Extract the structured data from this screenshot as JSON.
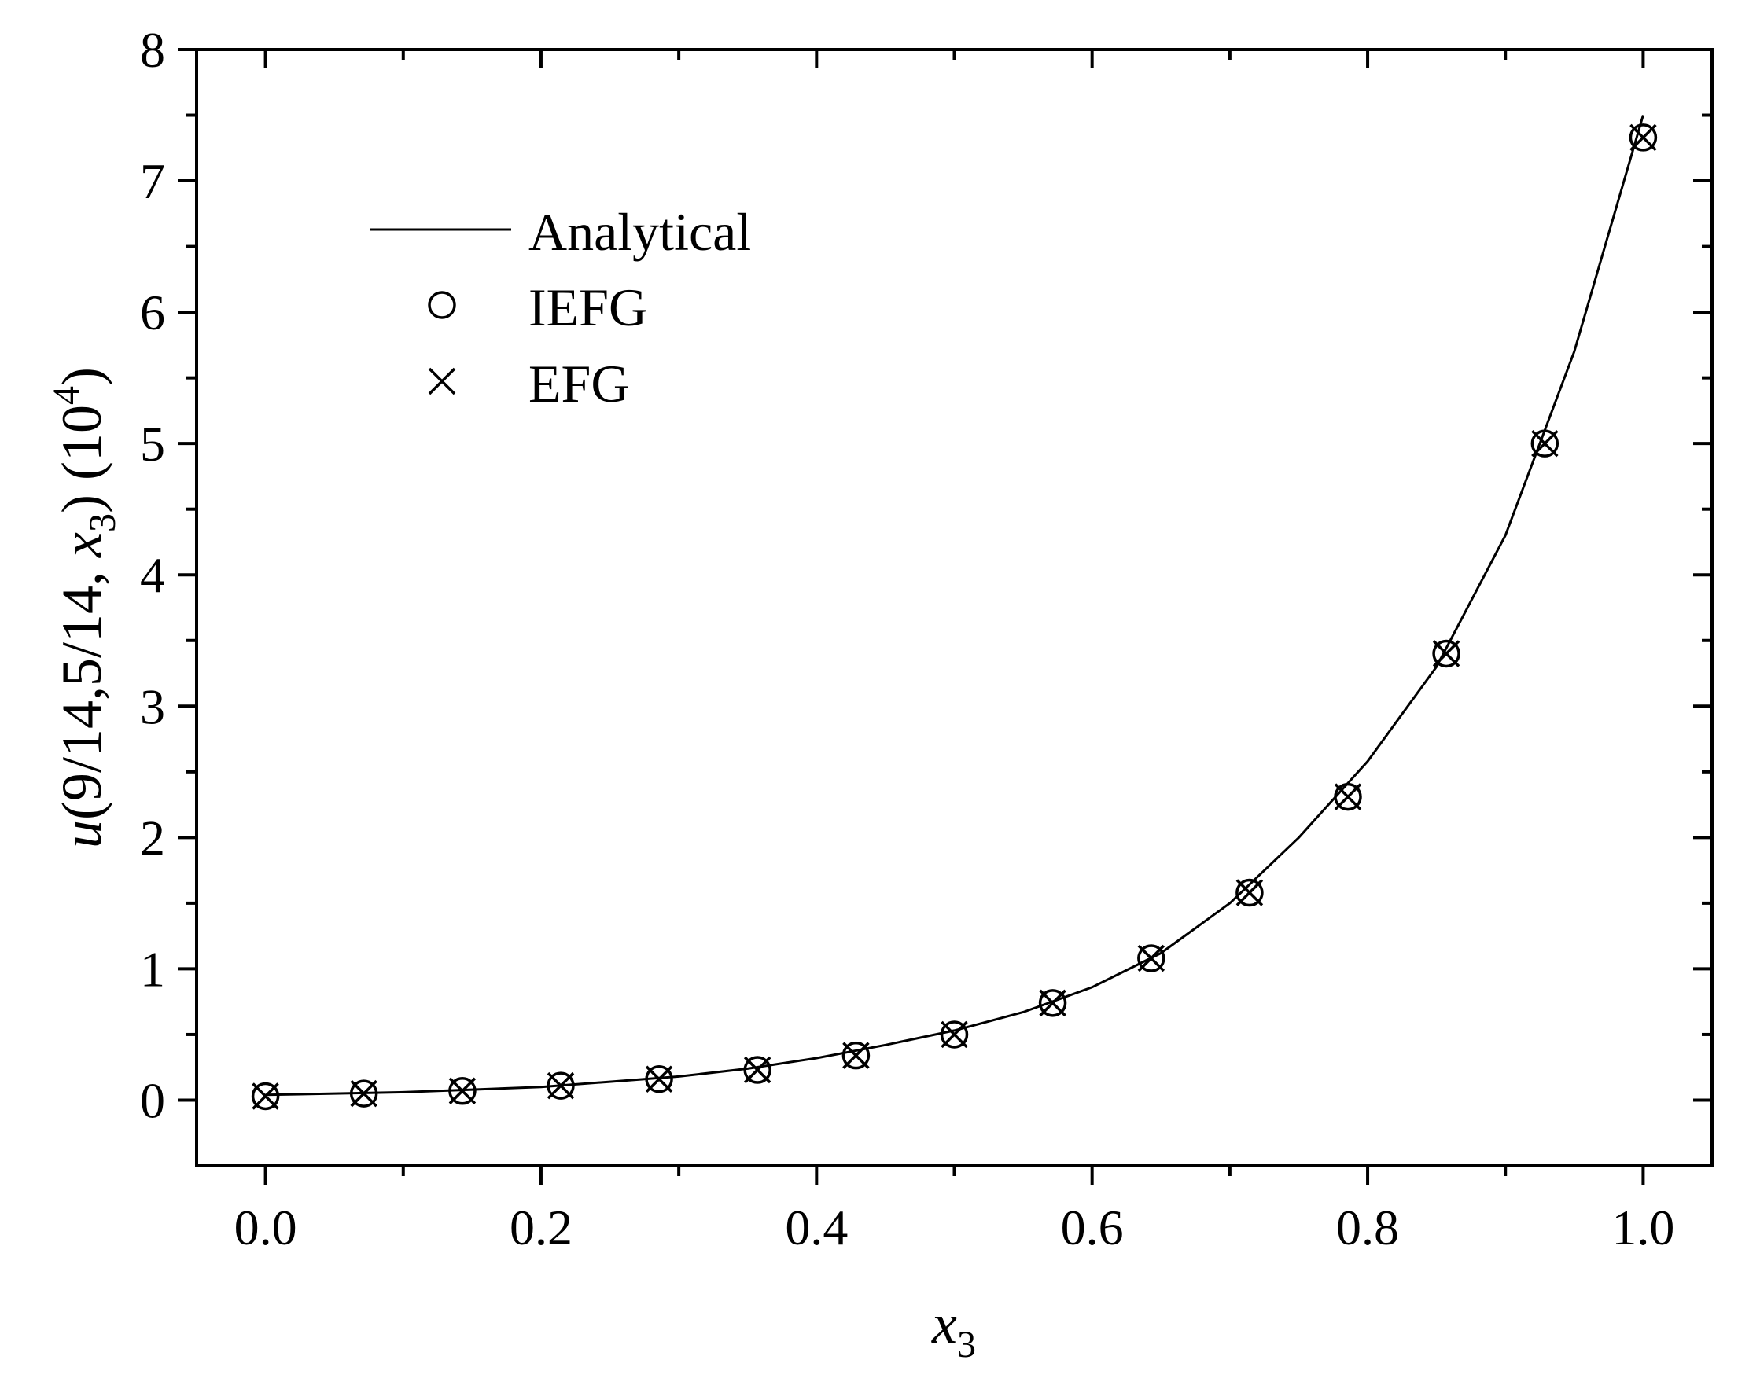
{
  "chart_data": {
    "type": "line",
    "xlabel": {
      "main": "x",
      "sub": "3"
    },
    "ylabel": {
      "prefix": "u",
      "args": "(9/14,5/14, ",
      "var": "x",
      "sub": "3",
      "close": ") (10",
      "exp": "4",
      "end": ")"
    },
    "xlim": [
      -0.05,
      1.05
    ],
    "ylim": [
      -0.5,
      8
    ],
    "xticks": [
      0.0,
      0.2,
      0.4,
      0.6,
      0.8,
      1.0
    ],
    "xtick_labels": [
      "0.0",
      "0.2",
      "0.4",
      "0.6",
      "0.8",
      "1.0"
    ],
    "yticks": [
      0,
      1,
      2,
      3,
      4,
      5,
      6,
      7,
      8
    ],
    "ytick_labels": [
      "0",
      "1",
      "2",
      "3",
      "4",
      "5",
      "6",
      "7",
      "8"
    ],
    "grid": false,
    "legend_position": "top-left",
    "series": [
      {
        "name": "Analytical",
        "marker": "line",
        "x": [
          0.0,
          0.05,
          0.1,
          0.15,
          0.2,
          0.25,
          0.3,
          0.35,
          0.4,
          0.45,
          0.5,
          0.55,
          0.6,
          0.65,
          0.7,
          0.75,
          0.8,
          0.85,
          0.9,
          0.95,
          1.0
        ],
        "y": [
          0.04,
          0.05,
          0.06,
          0.08,
          0.1,
          0.14,
          0.18,
          0.24,
          0.32,
          0.42,
          0.53,
          0.67,
          0.86,
          1.12,
          1.5,
          2.0,
          2.58,
          3.3,
          4.3,
          5.7,
          7.5
        ]
      },
      {
        "name": "IEFG",
        "marker": "circle",
        "x": [
          0.0,
          0.0714,
          0.1429,
          0.2143,
          0.2857,
          0.3571,
          0.4286,
          0.5,
          0.5714,
          0.6429,
          0.7143,
          0.7857,
          0.8571,
          0.9286,
          1.0
        ],
        "y": [
          0.03,
          0.05,
          0.07,
          0.11,
          0.16,
          0.23,
          0.34,
          0.5,
          0.74,
          1.08,
          1.58,
          2.31,
          3.4,
          5.0,
          7.33
        ]
      },
      {
        "name": "EFG",
        "marker": "cross",
        "x": [
          0.0,
          0.0714,
          0.1429,
          0.2143,
          0.2857,
          0.3571,
          0.4286,
          0.5,
          0.5714,
          0.6429,
          0.7143,
          0.7857,
          0.8571,
          0.9286,
          1.0
        ],
        "y": [
          0.03,
          0.05,
          0.07,
          0.11,
          0.16,
          0.23,
          0.34,
          0.5,
          0.74,
          1.08,
          1.58,
          2.31,
          3.4,
          5.0,
          7.33
        ]
      }
    ]
  }
}
